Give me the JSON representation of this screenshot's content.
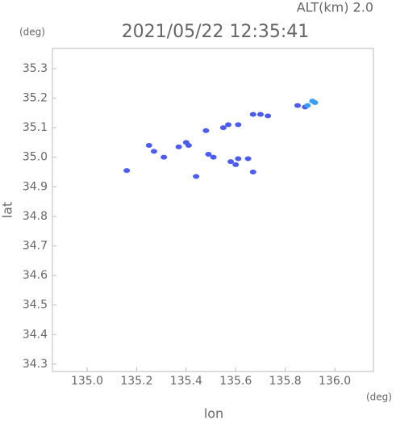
{
  "chart_data": {
    "type": "scatter",
    "title": "2021/05/22 12:35:41",
    "subtitle": "ALT(km) 2.0",
    "x_label": "lon",
    "y_label": "lat",
    "x_unit": "(deg)",
    "y_unit": "(deg)",
    "xlim": [
      134.86,
      136.156
    ],
    "ylim": [
      34.275,
      35.368
    ],
    "xticks": [
      {
        "value": 135,
        "label": "135.0"
      },
      135.2,
      135.4,
      135.6,
      135.8,
      {
        "value": 136,
        "label": "136.0"
      }
    ],
    "yticks": [
      34.3,
      34.4,
      34.5,
      34.6,
      34.7,
      34.8,
      34.9,
      {
        "value": 35,
        "label": "35.0"
      },
      35.1,
      35.2,
      35.3
    ],
    "series": [
      {
        "color": "#4c5cf0",
        "x": [
          135.16,
          135.25,
          135.27,
          135.31,
          135.37,
          135.4,
          135.41,
          135.44,
          135.48,
          135.49,
          135.51,
          135.55,
          135.57,
          135.61,
          135.58,
          135.6,
          135.61,
          135.65,
          135.67,
          135.67,
          135.7,
          135.73,
          135.85,
          135.88
        ],
        "values": [
          34.955,
          35.04,
          35.02,
          35.0,
          35.035,
          35.05,
          35.04,
          34.935,
          35.09,
          35.01,
          35.0,
          35.1,
          35.11,
          35.11,
          34.985,
          34.975,
          34.995,
          34.995,
          34.95,
          35.145,
          35.145,
          35.14,
          35.175,
          35.17
        ]
      },
      {
        "color": "#3a9ff2",
        "x": [
          135.89,
          135.91,
          135.92
        ],
        "values": [
          35.175,
          35.19,
          35.185
        ]
      }
    ]
  }
}
